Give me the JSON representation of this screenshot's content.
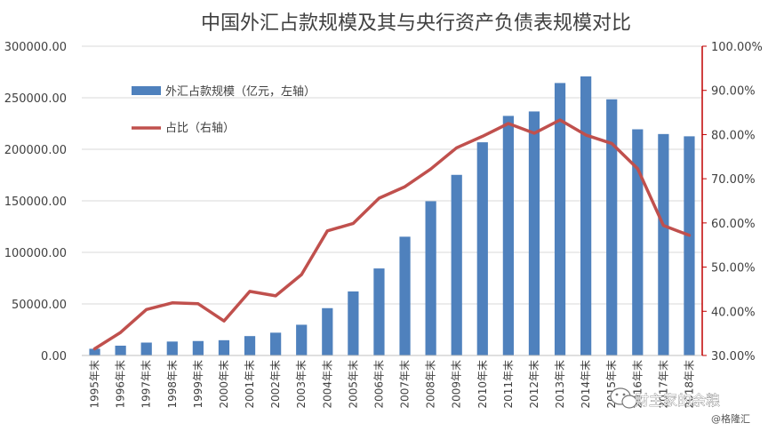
{
  "chart_data": {
    "type": "bar",
    "title": "中国外汇占款规模及其与央行资产负债表规模对比",
    "categories": [
      "1995年末",
      "1996年末",
      "1997年末",
      "1998年末",
      "1999年末",
      "2000年末",
      "2001年末",
      "2002年末",
      "2003年末",
      "2004年末",
      "2005年末",
      "2006年末",
      "2007年末",
      "2008年末",
      "2009年末",
      "2010年末",
      "2011年末",
      "2012年末",
      "2013年末",
      "2014年末",
      "2015年末",
      "2016年末",
      "2017年末",
      "2018年末"
    ],
    "series": [
      {
        "name": "外汇占款规模（亿元，左轴）",
        "type": "bar",
        "axis": "left",
        "color": "#4f81bd",
        "values": [
          6500,
          9500,
          12500,
          13500,
          14000,
          14800,
          18800,
          22100,
          29800,
          45900,
          62100,
          84400,
          115200,
          149600,
          175200,
          206800,
          232400,
          236700,
          264300,
          270700,
          248500,
          219400,
          214800,
          212600
        ]
      },
      {
        "name": "占比（右轴）",
        "type": "line",
        "axis": "right",
        "color": "#c0504d",
        "values": [
          31.5,
          35.2,
          40.4,
          41.9,
          41.7,
          37.8,
          44.5,
          43.5,
          48.3,
          58.2,
          59.9,
          65.6,
          68.2,
          72.2,
          77.0,
          79.6,
          82.5,
          80.3,
          83.3,
          79.9,
          78.0,
          72.3,
          59.4,
          57.2
        ]
      }
    ],
    "y_left": {
      "min": 0,
      "max": 300000,
      "step": 50000,
      "tick_labels": [
        "0.00",
        "50000.00",
        "100000.00",
        "150000.00",
        "200000.00",
        "250000.00",
        "300000.00"
      ]
    },
    "y_right": {
      "min": 30,
      "max": 100,
      "step": 10,
      "tick_labels": [
        "30.00%",
        "40.00%",
        "50.00%",
        "60.00%",
        "70.00%",
        "80.00%",
        "90.00%",
        "100.00%"
      ]
    },
    "legend_position": "top-left, inside plot",
    "grid": "horizontal only, light gray"
  },
  "watermark": {
    "brand": "财主家的余粮",
    "credit": "@格隆汇"
  }
}
